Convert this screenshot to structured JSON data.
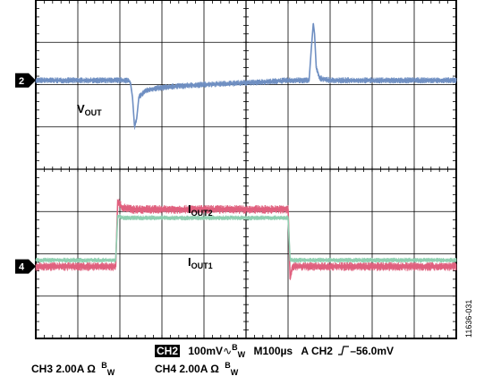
{
  "chart_data": {
    "type": "line",
    "title": "",
    "grid": true,
    "x_divisions": 10,
    "y_divisions": 8,
    "channel_markers": [
      {
        "id": "2",
        "ref_div": 1.9
      },
      {
        "id": "4",
        "ref_div": 6.3
      }
    ],
    "series": [
      {
        "name": "VOUT",
        "label_main": "V",
        "label_sub": "OUT",
        "color": "#6f8fc2",
        "noise_div": 0.05,
        "points": [
          [
            0,
            1.9
          ],
          [
            2.2,
            1.9
          ],
          [
            2.25,
            1.95
          ],
          [
            2.3,
            2.3
          ],
          [
            2.35,
            3.0
          ],
          [
            2.4,
            2.8
          ],
          [
            2.45,
            2.3
          ],
          [
            2.6,
            2.15
          ],
          [
            2.8,
            2.1
          ],
          [
            3.2,
            2.05
          ],
          [
            4.0,
            2.0
          ],
          [
            5.2,
            1.95
          ],
          [
            6.0,
            1.9
          ],
          [
            6.5,
            1.9
          ],
          [
            6.55,
            1.2
          ],
          [
            6.6,
            0.55
          ],
          [
            6.63,
            0.8
          ],
          [
            6.67,
            1.6
          ],
          [
            6.75,
            1.85
          ],
          [
            7.0,
            1.9
          ],
          [
            10,
            1.9
          ]
        ]
      },
      {
        "name": "IOUT2",
        "label_main": "I",
        "label_sub": "OUT2",
        "color": "#e0607e",
        "noise_div": 0.07,
        "points": [
          [
            0,
            6.3
          ],
          [
            1.9,
            6.3
          ],
          [
            1.95,
            4.75
          ],
          [
            2.05,
            4.9
          ],
          [
            2.3,
            4.95
          ],
          [
            6.0,
            4.95
          ],
          [
            6.02,
            5.5
          ],
          [
            6.05,
            6.6
          ],
          [
            6.1,
            6.3
          ],
          [
            10,
            6.3
          ]
        ]
      },
      {
        "name": "IOUT1",
        "label_main": "I",
        "label_sub": "OUT1",
        "color": "#8ecfb0",
        "noise_div": 0.04,
        "points": [
          [
            0,
            6.15
          ],
          [
            1.9,
            6.15
          ],
          [
            1.95,
            5.1
          ],
          [
            2.1,
            5.15
          ],
          [
            6.0,
            5.15
          ],
          [
            6.05,
            6.15
          ],
          [
            10,
            6.15
          ]
        ]
      }
    ]
  },
  "status": {
    "ch2_badge": "CH2",
    "ch2_settings": "100mV",
    "bw_b": "B",
    "bw_w": "W",
    "timebase": "M100µs",
    "trigger": "A  CH2",
    "trigger_level": "–56.0mV",
    "ch3_settings": "CH3  2.00A Ω",
    "ch4_settings": "CH4  2.00A Ω"
  },
  "figure_id": "11636-031",
  "icons": {
    "ac_coupling": "ac-coupling-icon",
    "trigger_edge": "rising-edge-icon"
  }
}
